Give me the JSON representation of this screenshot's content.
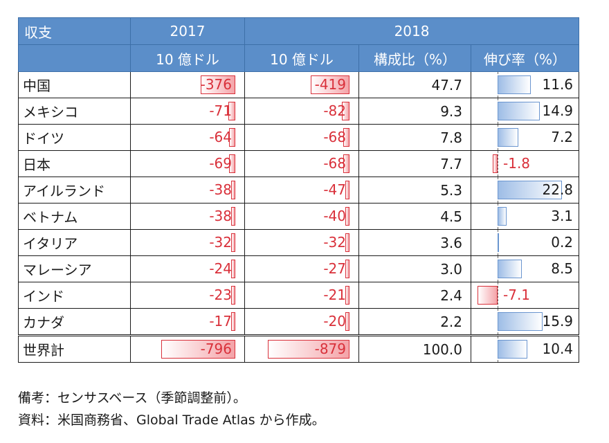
{
  "headers": {
    "col0": "収支",
    "year2017": "2017",
    "year2018": "2018",
    "unit2017": "10 億ドル",
    "unit2018": "10 億ドル",
    "share": "構成比（%）",
    "growth": "伸び率（%）"
  },
  "rows": [
    {
      "name": "中国",
      "v2017": "-376",
      "v2018": "-419",
      "share": "47.7",
      "growth": "11.6",
      "growth_value": 11.6
    },
    {
      "name": "メキシコ",
      "v2017": "-71",
      "v2018": "-82",
      "share": "9.3",
      "growth": "14.9",
      "growth_value": 14.9
    },
    {
      "name": "ドイツ",
      "v2017": "-64",
      "v2018": "-68",
      "share": "7.8",
      "growth": "7.2",
      "growth_value": 7.2
    },
    {
      "name": "日本",
      "v2017": "-69",
      "v2018": "-68",
      "share": "7.7",
      "growth": "-1.8",
      "growth_value": -1.8
    },
    {
      "name": "アイルランド",
      "v2017": "-38",
      "v2018": "-47",
      "share": "5.3",
      "growth": "22.8",
      "growth_value": 22.8
    },
    {
      "name": "ベトナム",
      "v2017": "-38",
      "v2018": "-40",
      "share": "4.5",
      "growth": "3.1",
      "growth_value": 3.1
    },
    {
      "name": "イタリア",
      "v2017": "-32",
      "v2018": "-32",
      "share": "3.6",
      "growth": "0.2",
      "growth_value": 0.2
    },
    {
      "name": "マレーシア",
      "v2017": "-24",
      "v2018": "-27",
      "share": "3.0",
      "growth": "8.5",
      "growth_value": 8.5
    },
    {
      "name": "インド",
      "v2017": "-23",
      "v2018": "-21",
      "share": "2.4",
      "growth": "-7.1",
      "growth_value": -7.1
    },
    {
      "name": "カナダ",
      "v2017": "-17",
      "v2018": "-20",
      "share": "2.2",
      "growth": "15.9",
      "growth_value": 15.9
    }
  ],
  "total": {
    "name": "世界計",
    "v2017": "-796",
    "v2018": "-879",
    "share": "100.0",
    "growth": "10.4",
    "growth_value": 10.4
  },
  "notes": {
    "remark": "備考：センサスベース（季節調整前）。",
    "source": "資料：米国商務省、Global Trade Atlas から作成。"
  },
  "colors": {
    "header_bg": "#5b8ec9",
    "negative": "#d9303a",
    "positive_bar": "#9ebde6"
  }
}
